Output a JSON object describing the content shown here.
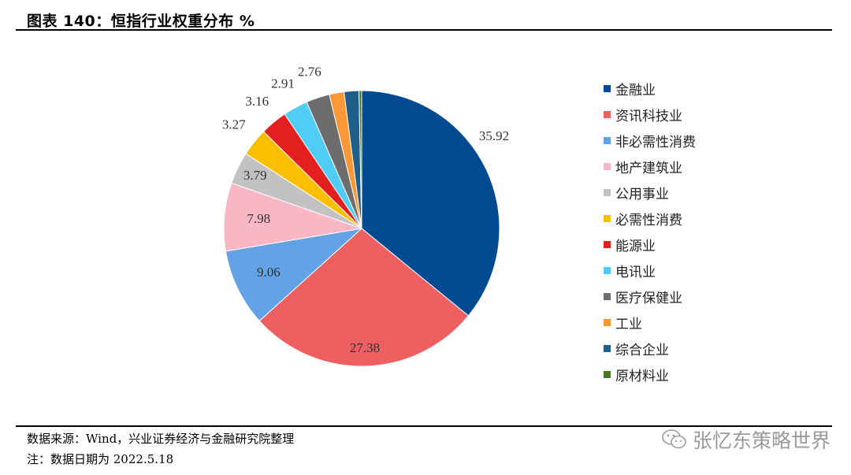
{
  "header": {
    "title": "图表 140：恒指行业权重分布 %"
  },
  "chart_data": {
    "type": "pie",
    "categories": [
      "金融业",
      "资讯科技业",
      "非必需性消费",
      "地产建筑业",
      "公用事业",
      "必需性消费",
      "能源业",
      "电讯业",
      "医疗保健业",
      "工业",
      "综合企业",
      "原材料业"
    ],
    "values": [
      35.92,
      27.38,
      9.06,
      7.98,
      3.79,
      3.27,
      3.16,
      2.91,
      2.76,
      1.72,
      1.74,
      0.31
    ],
    "labels": [
      "35.92",
      "27.38",
      "9.06",
      "7.98",
      "3.79",
      "3.27",
      "3.16",
      "2.91",
      "2.76",
      "",
      "",
      ""
    ],
    "colors": [
      "#024B93",
      "#EE5F61",
      "#62A2E5",
      "#F9B7C6",
      "#C2C2C2",
      "#F9BF00",
      "#E3201F",
      "#4FCDF5",
      "#6D6D6D",
      "#FB9735",
      "#1E5F8A",
      "#4A7A25"
    ],
    "legend_position": "right"
  },
  "footer": {
    "source": "数据来源：Wind，兴业证券经济与金融研究院整理",
    "note": "注：数据日期为 2022.5.18",
    "watermark": "张忆东策略世界",
    "watermark_icon": "wechat-icon"
  }
}
